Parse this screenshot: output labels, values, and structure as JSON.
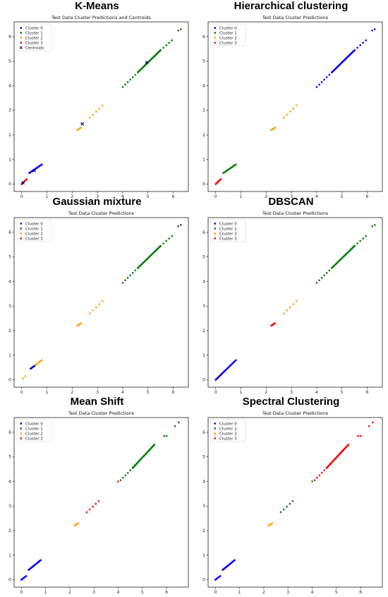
{
  "chart_data": [
    {
      "type": "scatter",
      "heading": "K-Means",
      "title": "Test Data Cluster Predictions and Centroids",
      "xlim": [
        -0.3,
        6.6
      ],
      "ylim": [
        -0.3,
        6.6
      ],
      "xticks": [
        0,
        1,
        2,
        3,
        4,
        5,
        6
      ],
      "yticks": [
        0,
        1,
        2,
        3,
        4,
        5,
        6
      ],
      "legend": "top-left",
      "series": [
        {
          "name": "Cluster 0",
          "color": "#0000ff",
          "marker": "dot",
          "segments": [
            [
              0.3,
              0.45,
              0.8,
              0.8,
              20
            ]
          ],
          "points": []
        },
        {
          "name": "Cluster 1",
          "color": "#008000",
          "marker": "dot",
          "segments": [
            [
              4.0,
              3.95,
              4.6,
              4.55,
              7
            ],
            [
              4.6,
              4.55,
              5.5,
              5.45,
              40
            ],
            [
              5.5,
              5.45,
              5.95,
              5.85,
              5
            ]
          ],
          "points": [
            [
              6.2,
              6.25
            ],
            [
              6.3,
              6.3
            ]
          ]
        },
        {
          "name": "Cluster 2",
          "color": "#ffa500",
          "marker": "dot",
          "segments": [
            [
              2.2,
              2.2,
              2.35,
              2.3,
              8
            ],
            [
              2.7,
              2.7,
              3.2,
              3.2,
              5
            ]
          ],
          "points": []
        },
        {
          "name": "Cluster 3",
          "color": "#ff0000",
          "marker": "dot",
          "segments": [
            [
              0.0,
              0.0,
              0.2,
              0.2,
              10
            ]
          ],
          "points": []
        },
        {
          "name": "Centroids",
          "color": "#000080",
          "marker": "x",
          "segments": [],
          "points": [
            [
              0.05,
              0.05
            ],
            [
              0.5,
              0.55
            ],
            [
              2.4,
              2.45
            ],
            [
              4.95,
              4.95
            ]
          ]
        }
      ]
    },
    {
      "type": "scatter",
      "heading": "Hierarchical clustering",
      "title": "Test Data Cluster Predictions",
      "xlim": [
        -0.3,
        6.6
      ],
      "ylim": [
        -0.3,
        6.6
      ],
      "xticks": [
        0,
        1,
        2,
        3,
        4,
        5,
        6
      ],
      "yticks": [
        0,
        1,
        2,
        3,
        4,
        5,
        6
      ],
      "legend": "top-left",
      "series": [
        {
          "name": "Cluster 0",
          "color": "#0000ff",
          "marker": "dot",
          "segments": [
            [
              4.0,
              3.95,
              4.6,
              4.55,
              7
            ],
            [
              4.6,
              4.55,
              5.5,
              5.45,
              40
            ],
            [
              5.5,
              5.45,
              5.95,
              5.85,
              5
            ]
          ],
          "points": [
            [
              6.2,
              6.25
            ],
            [
              6.3,
              6.3
            ]
          ]
        },
        {
          "name": "Cluster 1",
          "color": "#008000",
          "marker": "dot",
          "segments": [
            [
              0.3,
              0.45,
              0.8,
              0.8,
              20
            ]
          ],
          "points": []
        },
        {
          "name": "Cluster 2",
          "color": "#ffa500",
          "marker": "dot",
          "segments": [
            [
              2.2,
              2.2,
              2.35,
              2.3,
              8
            ],
            [
              2.7,
              2.7,
              3.2,
              3.2,
              5
            ]
          ],
          "points": []
        },
        {
          "name": "Cluster 3",
          "color": "#ff0000",
          "marker": "dot",
          "segments": [
            [
              0.0,
              0.0,
              0.2,
              0.2,
              10
            ]
          ],
          "points": []
        }
      ]
    },
    {
      "type": "scatter",
      "heading": "Gaussian mixture",
      "title": "Test Data Cluster Predictions",
      "xlim": [
        -0.3,
        6.6
      ],
      "ylim": [
        -0.3,
        6.6
      ],
      "xticks": [
        0,
        1,
        2,
        3,
        4,
        5,
        6
      ],
      "yticks": [
        0,
        1,
        2,
        3,
        4,
        5,
        6
      ],
      "legend": "top-left",
      "series": [
        {
          "name": "Cluster 0",
          "color": "#0000ff",
          "marker": "dot",
          "segments": [
            [
              0.35,
              0.45,
              0.55,
              0.6,
              14
            ]
          ],
          "points": []
        },
        {
          "name": "Cluster 1",
          "color": "#008000",
          "marker": "dot",
          "segments": [
            [
              4.0,
              3.95,
              4.6,
              4.55,
              7
            ],
            [
              4.6,
              4.55,
              5.5,
              5.45,
              40
            ],
            [
              5.5,
              5.45,
              5.95,
              5.85,
              5
            ]
          ],
          "points": [
            [
              6.2,
              6.25
            ],
            [
              6.3,
              6.3
            ]
          ]
        },
        {
          "name": "Cluster 2",
          "color": "#ffa500",
          "marker": "dot",
          "segments": [
            [
              0.55,
              0.6,
              0.8,
              0.8,
              7
            ],
            [
              2.2,
              2.2,
              2.35,
              2.3,
              8
            ],
            [
              2.7,
              2.7,
              3.2,
              3.2,
              5
            ]
          ],
          "points": [
            [
              0.05,
              0.05
            ],
            [
              0.15,
              0.15
            ]
          ]
        },
        {
          "name": "Cluster 3",
          "color": "#ff0000",
          "marker": "dot",
          "segments": [],
          "points": []
        }
      ]
    },
    {
      "type": "scatter",
      "heading": "DBSCAN",
      "title": "Test Data Cluster Predictions",
      "xlim": [
        -0.3,
        6.6
      ],
      "ylim": [
        -0.3,
        6.6
      ],
      "xticks": [
        0,
        1,
        2,
        3,
        4,
        5,
        6
      ],
      "yticks": [
        0,
        1,
        2,
        3,
        4,
        5,
        6
      ],
      "legend": "top-left",
      "series": [
        {
          "name": "Cluster 0",
          "color": "#0000ff",
          "marker": "dot",
          "segments": [
            [
              0.0,
              0.0,
              0.8,
              0.8,
              28
            ]
          ],
          "points": []
        },
        {
          "name": "Cluster 1",
          "color": "#008000",
          "marker": "dot",
          "segments": [
            [
              4.0,
              3.95,
              4.6,
              4.55,
              7
            ],
            [
              4.6,
              4.55,
              5.5,
              5.45,
              40
            ],
            [
              5.5,
              5.45,
              5.95,
              5.85,
              5
            ]
          ],
          "points": [
            [
              6.2,
              6.25
            ],
            [
              6.3,
              6.3
            ]
          ]
        },
        {
          "name": "Cluster 2",
          "color": "#ffa500",
          "marker": "dot",
          "segments": [
            [
              2.7,
              2.7,
              3.2,
              3.2,
              5
            ]
          ],
          "points": []
        },
        {
          "name": "Cluster 3",
          "color": "#ff0000",
          "marker": "dot",
          "segments": [
            [
              2.2,
              2.2,
              2.35,
              2.3,
              8
            ]
          ],
          "points": []
        }
      ]
    },
    {
      "type": "scatter",
      "heading": "Mean Shift",
      "title": "Test Data Cluster Predictions",
      "xlim": [
        -0.3,
        6.9
      ],
      "ylim": [
        -0.3,
        6.6
      ],
      "xticks": [
        0,
        1,
        2,
        3,
        4,
        5,
        6
      ],
      "yticks": [
        0,
        1,
        2,
        3,
        4,
        5,
        6
      ],
      "legend": "top-left",
      "series": [
        {
          "name": "Cluster 0",
          "color": "#0000ff",
          "marker": "dot",
          "segments": [
            [
              0.0,
              0.0,
              0.2,
              0.15,
              6
            ],
            [
              0.3,
              0.4,
              0.8,
              0.8,
              22
            ]
          ],
          "points": []
        },
        {
          "name": "Cluster 1",
          "color": "#008000",
          "marker": "dot",
          "segments": [
            [
              4.1,
              4.05,
              4.6,
              4.55,
              6
            ],
            [
              4.6,
              4.55,
              5.5,
              5.5,
              40
            ]
          ],
          "points": [
            [
              5.9,
              5.85
            ],
            [
              6.0,
              5.85
            ],
            [
              6.35,
              6.25
            ],
            [
              6.5,
              6.4
            ]
          ]
        },
        {
          "name": "Cluster 2",
          "color": "#ffa500",
          "marker": "dot",
          "segments": [
            [
              2.2,
              2.2,
              2.35,
              2.3,
              8
            ]
          ],
          "points": []
        },
        {
          "name": "Cluster 3",
          "color": "#ff0000",
          "marker": "dot",
          "segments": [
            [
              2.7,
              2.75,
              3.2,
              3.2,
              5
            ]
          ],
          "points": [
            [
              4.0,
              4.0
            ]
          ]
        }
      ]
    },
    {
      "type": "scatter",
      "heading": "Spectral Clustering",
      "title": "Test Data Cluster Predictions",
      "xlim": [
        -0.3,
        6.9
      ],
      "ylim": [
        -0.3,
        6.6
      ],
      "xticks": [
        0,
        1,
        2,
        3,
        4,
        5,
        6
      ],
      "yticks": [
        0,
        1,
        2,
        3,
        4,
        5,
        6
      ],
      "legend": "top-left",
      "series": [
        {
          "name": "Cluster 0",
          "color": "#0000ff",
          "marker": "dot",
          "segments": [
            [
              0.0,
              0.0,
              0.2,
              0.15,
              6
            ],
            [
              0.3,
              0.4,
              0.8,
              0.8,
              22
            ]
          ],
          "points": []
        },
        {
          "name": "Cluster 1",
          "color": "#008000",
          "marker": "dot",
          "segments": [
            [
              2.7,
              2.75,
              3.2,
              3.2,
              5
            ]
          ],
          "points": [
            [
              4.0,
              4.0
            ]
          ]
        },
        {
          "name": "Cluster 2",
          "color": "#ffa500",
          "marker": "dot",
          "segments": [
            [
              2.2,
              2.2,
              2.35,
              2.3,
              8
            ]
          ],
          "points": []
        },
        {
          "name": "Cluster 3",
          "color": "#ff0000",
          "marker": "dot",
          "segments": [
            [
              4.1,
              4.05,
              4.6,
              4.55,
              6
            ],
            [
              4.6,
              4.55,
              5.5,
              5.5,
              40
            ]
          ],
          "points": [
            [
              5.9,
              5.85
            ],
            [
              6.0,
              5.85
            ],
            [
              6.35,
              6.25
            ],
            [
              6.5,
              6.4
            ]
          ]
        }
      ]
    }
  ]
}
